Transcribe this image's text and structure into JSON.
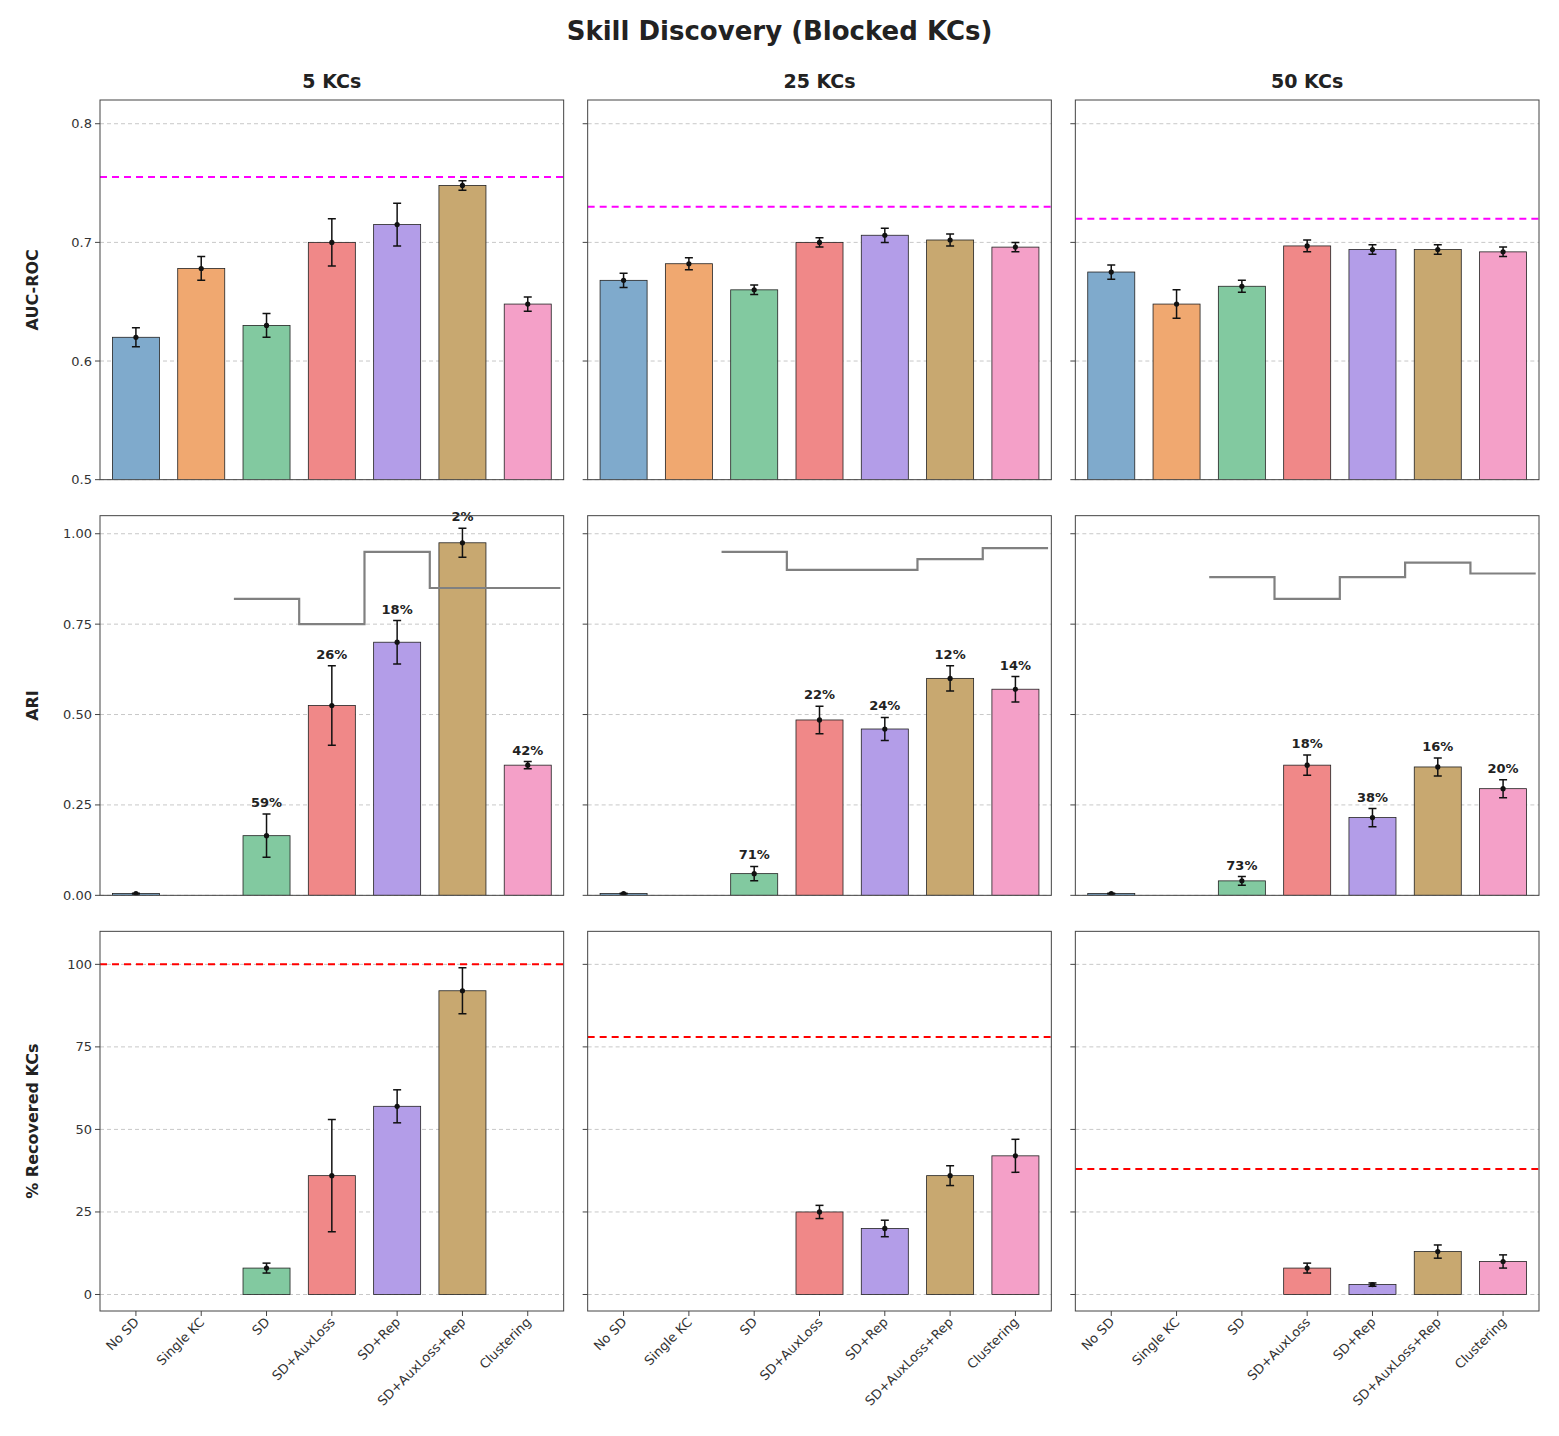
{
  "title": "Skill Discovery (Blocked KCs)",
  "chart_data": [
    {
      "type": "bar",
      "title": "5 KCs",
      "ylabel": "AUC-ROC",
      "categories": [
        "No SD",
        "Single KC",
        "SD",
        "SD+AuxLoss",
        "SD+Rep",
        "SD+AuxLoss+Rep",
        "Clustering"
      ],
      "colors": [
        "#7faacc",
        "#f0a870",
        "#82c9a0",
        "#f08888",
        "#b39de8",
        "#c8a870",
        "#f4a0c8"
      ],
      "values": [
        0.62,
        0.678,
        0.63,
        0.7,
        0.715,
        0.748,
        0.648
      ],
      "errors": [
        0.008,
        0.01,
        0.01,
        0.02,
        0.018,
        0.004,
        0.006
      ],
      "reference_line": {
        "value": 0.755,
        "color": "magenta",
        "line_style": "dashed"
      },
      "ylim": [
        0.5,
        0.82
      ],
      "yticks": [
        0.5,
        0.6,
        0.7,
        0.8
      ],
      "grid": true,
      "tick_labels": "y"
    },
    {
      "type": "bar",
      "title": "25 KCs",
      "categories": [
        "No SD",
        "Single KC",
        "SD",
        "SD+AuxLoss",
        "SD+Rep",
        "SD+AuxLoss+Rep",
        "Clustering"
      ],
      "colors": [
        "#7faacc",
        "#f0a870",
        "#82c9a0",
        "#f08888",
        "#b39de8",
        "#c8a870",
        "#f4a0c8"
      ],
      "values": [
        0.668,
        0.682,
        0.66,
        0.7,
        0.706,
        0.702,
        0.696
      ],
      "errors": [
        0.006,
        0.005,
        0.004,
        0.004,
        0.006,
        0.005,
        0.004
      ],
      "reference_line": {
        "value": 0.73,
        "color": "magenta",
        "line_style": "dashed"
      },
      "ylim": [
        0.5,
        0.82
      ],
      "yticks": [
        0.5,
        0.6,
        0.7,
        0.8
      ],
      "grid": true,
      "tick_labels": false
    },
    {
      "type": "bar",
      "title": "50 KCs",
      "categories": [
        "No SD",
        "Single KC",
        "SD",
        "SD+AuxLoss",
        "SD+Rep",
        "SD+AuxLoss+Rep",
        "Clustering"
      ],
      "colors": [
        "#7faacc",
        "#f0a870",
        "#82c9a0",
        "#f08888",
        "#b39de8",
        "#c8a870",
        "#f4a0c8"
      ],
      "values": [
        0.675,
        0.648,
        0.663,
        0.697,
        0.694,
        0.694,
        0.692
      ],
      "errors": [
        0.006,
        0.012,
        0.005,
        0.005,
        0.004,
        0.004,
        0.004
      ],
      "reference_line": {
        "value": 0.72,
        "color": "magenta",
        "line_style": "dashed"
      },
      "ylim": [
        0.5,
        0.82
      ],
      "yticks": [
        0.5,
        0.6,
        0.7,
        0.8
      ],
      "grid": true,
      "tick_labels": false
    },
    {
      "type": "bar",
      "ylabel": "ARI",
      "categories": [
        "No SD",
        "Single KC",
        "SD",
        "SD+AuxLoss",
        "SD+Rep",
        "SD+AuxLoss+Rep",
        "Clustering"
      ],
      "colors": [
        "#7faacc",
        "#f0a870",
        "#82c9a0",
        "#f08888",
        "#b39de8",
        "#c8a870",
        "#f4a0c8"
      ],
      "values": [
        0.005,
        0.0,
        0.165,
        0.525,
        0.7,
        0.975,
        0.36
      ],
      "errors": [
        0.001,
        0.0,
        0.06,
        0.11,
        0.06,
        0.04,
        0.01
      ],
      "annotations": [
        null,
        null,
        "59%",
        "26%",
        "18%",
        "2%",
        "42%"
      ],
      "step_line": {
        "x": [
          1.5,
          1.5,
          2.5,
          2.5,
          3.5,
          3.5,
          4.5,
          4.5,
          6.5
        ],
        "y": [
          0.82,
          0.82,
          0.82,
          0.75,
          0.75,
          0.95,
          0.95,
          0.85,
          0.85
        ],
        "color": "gray"
      },
      "ylim": [
        0.0,
        1.05
      ],
      "yticks": [
        {
          "value": 0.0,
          "label": "0.00"
        },
        0.25,
        {
          "value": 0.5,
          "label": "0.50"
        },
        0.75,
        {
          "value": 1.0,
          "label": "1.00"
        }
      ],
      "grid": true,
      "tick_labels": "y"
    },
    {
      "type": "bar",
      "categories": [
        "No SD",
        "Single KC",
        "SD",
        "SD+AuxLoss",
        "SD+Rep",
        "SD+AuxLoss+Rep",
        "Clustering"
      ],
      "colors": [
        "#7faacc",
        "#f0a870",
        "#82c9a0",
        "#f08888",
        "#b39de8",
        "#c8a870",
        "#f4a0c8"
      ],
      "values": [
        0.005,
        0.0,
        0.06,
        0.485,
        0.46,
        0.6,
        0.57
      ],
      "errors": [
        0.001,
        0.0,
        0.02,
        0.038,
        0.032,
        0.035,
        0.035
      ],
      "annotations": [
        null,
        null,
        "71%",
        "22%",
        "24%",
        "12%",
        "14%"
      ],
      "step_line": {
        "x": [
          1.5,
          1.5,
          2.5,
          2.5,
          3.5,
          3.5,
          4.5,
          4.5,
          5.5,
          5.5,
          6.5
        ],
        "y": [
          0.95,
          0.95,
          0.95,
          0.9,
          0.9,
          0.9,
          0.9,
          0.93,
          0.93,
          0.96,
          0.96
        ],
        "color": "gray"
      },
      "ylim": [
        0.0,
        1.05
      ],
      "yticks": [
        0.0,
        0.25,
        0.5,
        0.75,
        1.0
      ],
      "grid": true,
      "tick_labels": false
    },
    {
      "type": "bar",
      "categories": [
        "No SD",
        "Single KC",
        "SD",
        "SD+AuxLoss",
        "SD+Rep",
        "SD+AuxLoss+Rep",
        "Clustering"
      ],
      "colors": [
        "#7faacc",
        "#f0a870",
        "#82c9a0",
        "#f08888",
        "#b39de8",
        "#c8a870",
        "#f4a0c8"
      ],
      "values": [
        0.005,
        0.0,
        0.04,
        0.36,
        0.215,
        0.355,
        0.295
      ],
      "errors": [
        0.001,
        0.0,
        0.012,
        0.028,
        0.025,
        0.025,
        0.025
      ],
      "annotations": [
        null,
        null,
        "73%",
        "18%",
        "38%",
        "16%",
        "20%"
      ],
      "step_line": {
        "x": [
          1.5,
          1.5,
          2.5,
          2.5,
          3.5,
          3.5,
          4.5,
          4.5,
          5.5,
          5.5,
          6.5
        ],
        "y": [
          0.88,
          0.88,
          0.88,
          0.82,
          0.82,
          0.88,
          0.88,
          0.92,
          0.92,
          0.89,
          0.89
        ],
        "color": "gray"
      },
      "ylim": [
        0.0,
        1.05
      ],
      "yticks": [
        0.0,
        0.25,
        0.5,
        0.75,
        1.0
      ],
      "grid": true,
      "tick_labels": false
    },
    {
      "type": "bar",
      "ylabel": "% Recovered KCs",
      "categories": [
        "No SD",
        "Single KC",
        "SD",
        "SD+AuxLoss",
        "SD+Rep",
        "SD+AuxLoss+Rep",
        "Clustering"
      ],
      "colors": [
        "#7faacc",
        "#f0a870",
        "#82c9a0",
        "#f08888",
        "#b39de8",
        "#c8a870",
        "#f4a0c8"
      ],
      "values": [
        0.0,
        0.0,
        8.0,
        36.0,
        57.0,
        92.0,
        0.0
      ],
      "errors": [
        0.0,
        0.0,
        1.5,
        17.0,
        5.0,
        7.0,
        0.0
      ],
      "reference_line": {
        "value": 100.0,
        "color": "red",
        "line_style": "dashed"
      },
      "ylim": [
        -5.0,
        110.0
      ],
      "yticks": [
        0,
        25,
        50,
        75,
        100
      ],
      "grid": true
    },
    {
      "type": "bar",
      "categories": [
        "No SD",
        "Single KC",
        "SD",
        "SD+AuxLoss",
        "SD+Rep",
        "SD+AuxLoss+Rep",
        "Clustering"
      ],
      "colors": [
        "#7faacc",
        "#f0a870",
        "#82c9a0",
        "#f08888",
        "#b39de8",
        "#c8a870",
        "#f4a0c8"
      ],
      "values": [
        0.0,
        0.0,
        0.0,
        25.0,
        20.0,
        36.0,
        42.0
      ],
      "errors": [
        0.0,
        0.0,
        0.0,
        2.0,
        2.5,
        3.0,
        5.0
      ],
      "reference_line": {
        "value": 78.0,
        "color": "red",
        "line_style": "dashed"
      },
      "ylim": [
        -5.0,
        110.0
      ],
      "yticks": [
        0,
        25,
        50,
        75,
        100
      ],
      "grid": true,
      "tick_labels": "x"
    },
    {
      "type": "bar",
      "categories": [
        "No SD",
        "Single KC",
        "SD",
        "SD+AuxLoss",
        "SD+Rep",
        "SD+AuxLoss+Rep",
        "Clustering"
      ],
      "colors": [
        "#7faacc",
        "#f0a870",
        "#82c9a0",
        "#f08888",
        "#b39de8",
        "#c8a870",
        "#f4a0c8"
      ],
      "values": [
        0.0,
        0.0,
        0.0,
        8.0,
        3.0,
        13.0,
        10.0
      ],
      "errors": [
        0.0,
        0.0,
        0.0,
        1.5,
        0.5,
        2.0,
        2.0
      ],
      "reference_line": {
        "value": 38.0,
        "color": "red",
        "line_style": "dashed"
      },
      "ylim": [
        -5.0,
        110.0
      ],
      "yticks": [
        0,
        25,
        50,
        75,
        100
      ],
      "grid": true,
      "tick_labels": "x"
    }
  ]
}
